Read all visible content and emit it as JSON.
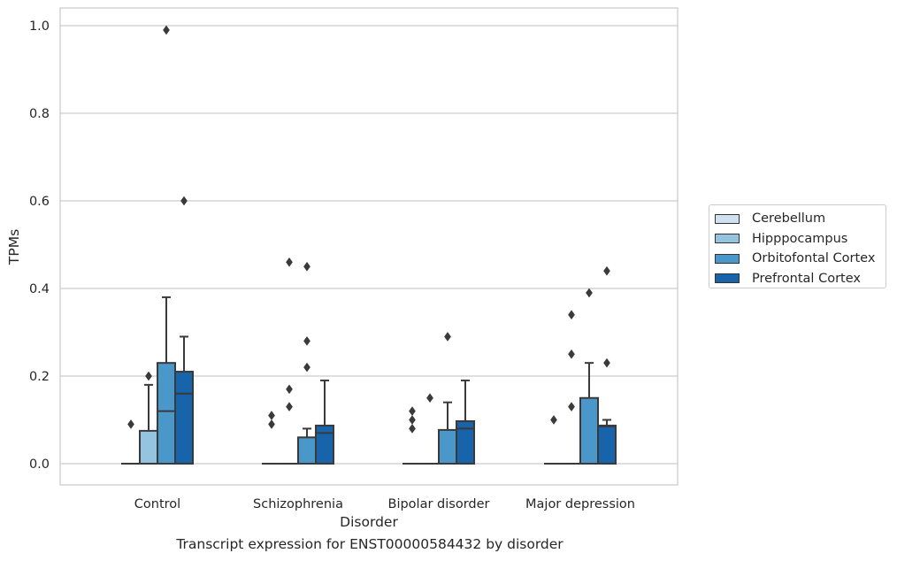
{
  "chart_data": {
    "type": "box",
    "title": "",
    "xlabel": "Disorder",
    "ylabel": "TPMs",
    "caption": "Transcript expression for ENST00000584432 by disorder",
    "categories": [
      "Control",
      "Schizophrenia",
      "Bipolar disorder",
      "Major depression"
    ],
    "ylim": [
      -0.048,
      1.04
    ],
    "yticks": [
      {
        "value": 0.0,
        "label": "0.0"
      },
      {
        "value": 0.2,
        "label": "0.2"
      },
      {
        "value": 0.4,
        "label": "0.4"
      },
      {
        "value": 0.6,
        "label": "0.6"
      },
      {
        "value": 0.8,
        "label": "0.8"
      },
      {
        "value": 1.0,
        "label": "1.0"
      }
    ],
    "grid": "horizontal",
    "legend_position": "center-right",
    "series": [
      {
        "name": "Cerebellum",
        "color": "#d0e1f2",
        "boxes": [
          {
            "q1": 0,
            "median": 0,
            "q3": 0,
            "whisker_low": 0,
            "whisker_high": 0,
            "outliers": [
              0.09
            ]
          },
          {
            "q1": 0,
            "median": 0,
            "q3": 0,
            "whisker_low": 0,
            "whisker_high": 0,
            "outliers": [
              0.09,
              0.11
            ]
          },
          {
            "q1": 0,
            "median": 0,
            "q3": 0,
            "whisker_low": 0,
            "whisker_high": 0,
            "outliers": [
              0.08,
              0.1,
              0.12
            ]
          },
          {
            "q1": 0,
            "median": 0,
            "q3": 0,
            "whisker_low": 0,
            "whisker_high": 0,
            "outliers": [
              0.1
            ]
          }
        ]
      },
      {
        "name": "Hipppocampus",
        "color": "#94c4df",
        "boxes": [
          {
            "q1": 0,
            "median": 0,
            "q3": 0.075,
            "whisker_low": 0,
            "whisker_high": 0.18,
            "outliers": [
              0.2
            ]
          },
          {
            "q1": 0,
            "median": 0,
            "q3": 0,
            "whisker_low": 0,
            "whisker_high": 0,
            "outliers": [
              0.13,
              0.17,
              0.46
            ]
          },
          {
            "q1": 0,
            "median": 0,
            "q3": 0,
            "whisker_low": 0,
            "whisker_high": 0,
            "outliers": [
              0.15
            ]
          },
          {
            "q1": 0,
            "median": 0,
            "q3": 0,
            "whisker_low": 0,
            "whisker_high": 0,
            "outliers": [
              0.13,
              0.25,
              0.34
            ]
          }
        ]
      },
      {
        "name": "Orbitofontal Cortex",
        "color": "#4a98c9",
        "boxes": [
          {
            "q1": 0,
            "median": 0.12,
            "q3": 0.23,
            "whisker_low": 0,
            "whisker_high": 0.38,
            "outliers": [
              0.99
            ]
          },
          {
            "q1": 0,
            "median": 0,
            "q3": 0.06,
            "whisker_low": 0,
            "whisker_high": 0.08,
            "outliers": [
              0.22,
              0.28,
              0.45
            ]
          },
          {
            "q1": 0,
            "median": 0,
            "q3": 0.077,
            "whisker_low": 0,
            "whisker_high": 0.14,
            "outliers": [
              0.29
            ]
          },
          {
            "q1": 0,
            "median": 0,
            "q3": 0.15,
            "whisker_low": 0,
            "whisker_high": 0.23,
            "outliers": [
              0.39
            ]
          }
        ]
      },
      {
        "name": "Prefrontal Cortex",
        "color": "#1764ab",
        "boxes": [
          {
            "q1": 0,
            "median": 0.16,
            "q3": 0.21,
            "whisker_low": 0,
            "whisker_high": 0.29,
            "outliers": [
              0.6
            ]
          },
          {
            "q1": 0,
            "median": 0.07,
            "q3": 0.087,
            "whisker_low": 0,
            "whisker_high": 0.19,
            "outliers": []
          },
          {
            "q1": 0,
            "median": 0.08,
            "q3": 0.097,
            "whisker_low": 0,
            "whisker_high": 0.19,
            "outliers": []
          },
          {
            "q1": 0,
            "median": 0.085,
            "q3": 0.087,
            "whisker_low": 0,
            "whisker_high": 0.1,
            "outliers": [
              0.23,
              0.44
            ]
          }
        ]
      }
    ]
  }
}
